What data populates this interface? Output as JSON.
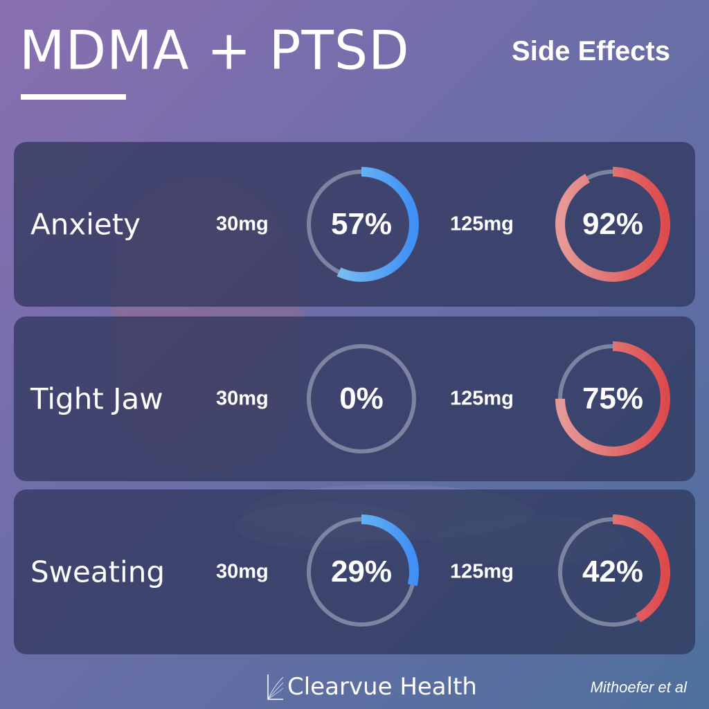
{
  "header": {
    "title": "MDMA + PTSD",
    "subtitle": "Side Effects"
  },
  "colors": {
    "low_dose_start": "#8fd0f0",
    "low_dose_end": "#3f8ff5",
    "high_dose_start": "#e69a98",
    "high_dose_end": "#dd4a4c",
    "track": "#8a8fa8",
    "panel_bg": "#2d3458"
  },
  "chart_data": {
    "type": "donut",
    "title": "Side Effects",
    "doses": [
      "30mg",
      "125mg"
    ],
    "rows": [
      {
        "label": "Anxiety",
        "low": {
          "dose": "30mg",
          "value": 57,
          "display": "57%"
        },
        "high": {
          "dose": "125mg",
          "value": 92,
          "display": "92%"
        }
      },
      {
        "label": "Tight Jaw",
        "low": {
          "dose": "30mg",
          "value": 0,
          "display": "0%"
        },
        "high": {
          "dose": "125mg",
          "value": 75,
          "display": "75%"
        }
      },
      {
        "label": "Sweating",
        "low": {
          "dose": "30mg",
          "value": 29,
          "display": "29%"
        },
        "high": {
          "dose": "125mg",
          "value": 42,
          "display": "42%"
        }
      }
    ]
  },
  "footer": {
    "brand": "Clearvue Health",
    "citation": "Mithoefer et al"
  }
}
